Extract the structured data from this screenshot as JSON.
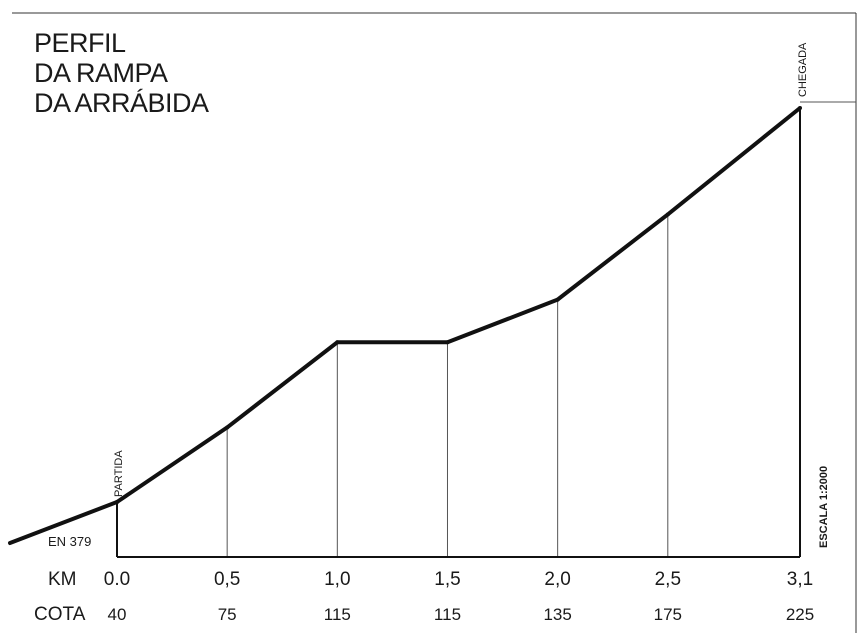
{
  "title_lines": [
    "PERFIL",
    "DA RAMPA",
    "DA ARRÁBIDA"
  ],
  "row_labels": {
    "km": "KM",
    "cota": "COTA"
  },
  "annotations": {
    "start": "PARTIDA",
    "finish": "CHEGADA",
    "road": "EN 379",
    "scale": "ESCALA 1:2000"
  },
  "colors": {
    "profile_line": "#111111",
    "grid_line": "#555555",
    "text": "#1a1a1a",
    "frame": "#333333"
  },
  "chart_data": {
    "type": "line",
    "title": "PERFIL DA RAMPA DA ARRÁBIDA",
    "xlabel": "KM",
    "ylabel": "COTA",
    "km_tick_labels": [
      "0.0",
      "0,5",
      "1,0",
      "1,5",
      "2,0",
      "2,5",
      "3,1"
    ],
    "cota_labels": [
      "40",
      "75",
      "115",
      "115",
      "135",
      "175",
      "225"
    ],
    "x": [
      0.0,
      0.5,
      1.0,
      1.5,
      2.0,
      2.5,
      3.1
    ],
    "y": [
      40,
      75,
      115,
      115,
      135,
      175,
      225
    ],
    "grid": false,
    "legend": "none"
  }
}
